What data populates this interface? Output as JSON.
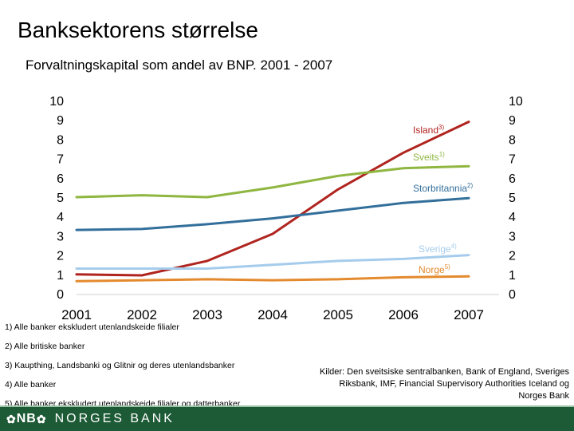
{
  "header": {
    "title": "Banksektorens størrelse",
    "subtitle": "Forvaltningskapital som andel av BNP. 2001 - 2007"
  },
  "chart_data": {
    "type": "line",
    "x": [
      2001,
      2002,
      2003,
      2004,
      2005,
      2006,
      2007
    ],
    "xlim": [
      2001,
      2007
    ],
    "ylim": [
      0,
      10
    ],
    "yticks": [
      0,
      1,
      2,
      3,
      4,
      5,
      6,
      7,
      8,
      9,
      10
    ],
    "ytick_labels_both_sides": true,
    "grid": false,
    "series": [
      {
        "name": "Island",
        "sup": "3)",
        "color": "#b0241f",
        "values": [
          1.0,
          0.95,
          1.7,
          3.1,
          5.4,
          7.3,
          8.9
        ]
      },
      {
        "name": "Sveits",
        "sup": "1)",
        "color": "#8fb640",
        "values": [
          5.0,
          5.1,
          5.0,
          5.5,
          6.1,
          6.5,
          6.6
        ]
      },
      {
        "name": "Storbritannia",
        "sup": "2)",
        "color": "#336f9b",
        "values": [
          3.3,
          3.35,
          3.6,
          3.9,
          4.3,
          4.7,
          4.95
        ]
      },
      {
        "name": "Sverige",
        "sup": "4)",
        "color": "#a5ccec",
        "values": [
          1.3,
          1.3,
          1.3,
          1.5,
          1.7,
          1.8,
          2.0
        ]
      },
      {
        "name": "Norge",
        "sup": "5)",
        "color": "#e48a2e",
        "values": [
          0.65,
          0.7,
          0.75,
          0.7,
          0.75,
          0.85,
          0.9
        ]
      }
    ]
  },
  "footnotes": [
    "1)  Alle banker ekskludert utenlandskeide filialer",
    "2)  Alle britiske banker",
    "3)  Kaupthing, Landsbanki og Glitnir og deres utenlandsbanker",
    "4)  Alle banker",
    "5)  Alle banker ekskludert utenlandskeide filialer og datterbanker"
  ],
  "sources": "Kilder: Den sveitsiske sentralbanken, Bank of England, Sveriges Riksbank, IMF, Financial Supervisory Authorities Iceland og Norges Bank",
  "footer": {
    "logo_mark": "NB",
    "logo_name": "NORGES BANK",
    "bar_color": "#1d5a36",
    "icon": "flower-icon"
  }
}
